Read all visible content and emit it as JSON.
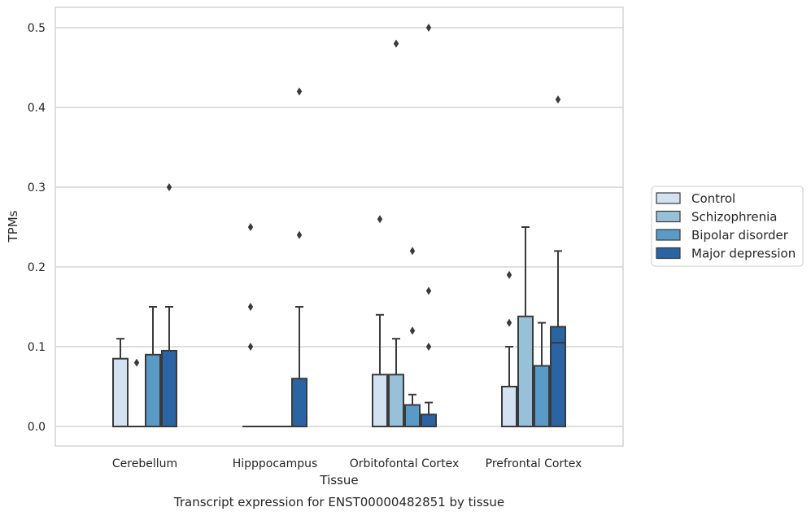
{
  "chart_data": {
    "type": "box",
    "caption": "Transcript expression for ENST00000482851 by tissue",
    "xlabel": "Tissue",
    "ylabel": "TPMs",
    "ylim": [
      -0.025,
      0.525
    ],
    "yticks": [
      "0.0",
      "0.1",
      "0.2",
      "0.3",
      "0.4",
      "0.5"
    ],
    "ytick_values": [
      0.0,
      0.1,
      0.2,
      0.3,
      0.4,
      0.5
    ],
    "grid": "horizontal",
    "legend_position": "right",
    "categories": [
      "Cerebellum",
      "Hipppocampus",
      "Orbitofontal Cortex",
      "Prefrontal Cortex"
    ],
    "series": [
      {
        "name": "Control",
        "color": "#d2e2f0",
        "boxes": [
          {
            "q1": 0.0,
            "median": 0.0,
            "q3": 0.085,
            "whisker_low": 0.0,
            "whisker_high": 0.11,
            "outliers": []
          },
          {
            "q1": 0.0,
            "median": 0.0,
            "q3": 0.0,
            "whisker_low": 0.0,
            "whisker_high": 0.0,
            "outliers": [
              0.1,
              0.15,
              0.25
            ]
          },
          {
            "q1": 0.0,
            "median": 0.0,
            "q3": 0.065,
            "whisker_low": 0.0,
            "whisker_high": 0.14,
            "outliers": [
              0.26
            ]
          },
          {
            "q1": 0.0,
            "median": 0.0,
            "q3": 0.05,
            "whisker_low": 0.0,
            "whisker_high": 0.1,
            "outliers": [
              0.13,
              0.19
            ]
          }
        ]
      },
      {
        "name": "Schizophrenia",
        "color": "#98c1d9",
        "boxes": [
          {
            "q1": 0.0,
            "median": 0.0,
            "q3": 0.0,
            "whisker_low": 0.0,
            "whisker_high": 0.0,
            "outliers": [
              0.08
            ]
          },
          {
            "q1": 0.0,
            "median": 0.0,
            "q3": 0.0,
            "whisker_low": 0.0,
            "whisker_high": 0.0,
            "outliers": []
          },
          {
            "q1": 0.0,
            "median": 0.0,
            "q3": 0.065,
            "whisker_low": 0.0,
            "whisker_high": 0.11,
            "outliers": [
              0.48
            ]
          },
          {
            "q1": 0.0,
            "median": 0.0,
            "q3": 0.138,
            "whisker_low": 0.0,
            "whisker_high": 0.25,
            "outliers": []
          }
        ]
      },
      {
        "name": "Bipolar disorder",
        "color": "#5a9ac7",
        "boxes": [
          {
            "q1": 0.0,
            "median": 0.0,
            "q3": 0.09,
            "whisker_low": 0.0,
            "whisker_high": 0.15,
            "outliers": []
          },
          {
            "q1": 0.0,
            "median": 0.0,
            "q3": 0.0,
            "whisker_low": 0.0,
            "whisker_high": 0.0,
            "outliers": []
          },
          {
            "q1": 0.0,
            "median": 0.0,
            "q3": 0.027,
            "whisker_low": 0.0,
            "whisker_high": 0.04,
            "outliers": [
              0.12,
              0.22
            ]
          },
          {
            "q1": 0.0,
            "median": 0.0,
            "q3": 0.076,
            "whisker_low": 0.0,
            "whisker_high": 0.13,
            "outliers": []
          }
        ]
      },
      {
        "name": "Major depression",
        "color": "#2a64a3",
        "boxes": [
          {
            "q1": 0.0,
            "median": 0.0,
            "q3": 0.095,
            "whisker_low": 0.0,
            "whisker_high": 0.15,
            "outliers": [
              0.3
            ]
          },
          {
            "q1": 0.0,
            "median": 0.0,
            "q3": 0.06,
            "whisker_low": 0.0,
            "whisker_high": 0.15,
            "outliers": [
              0.24,
              0.42
            ]
          },
          {
            "q1": 0.0,
            "median": 0.0,
            "q3": 0.015,
            "whisker_low": 0.0,
            "whisker_high": 0.03,
            "outliers": [
              0.1,
              0.17,
              0.5
            ]
          },
          {
            "q1": 0.0,
            "median": 0.105,
            "q3": 0.125,
            "whisker_low": 0.0,
            "whisker_high": 0.22,
            "outliers": [
              0.41
            ]
          }
        ]
      }
    ]
  }
}
